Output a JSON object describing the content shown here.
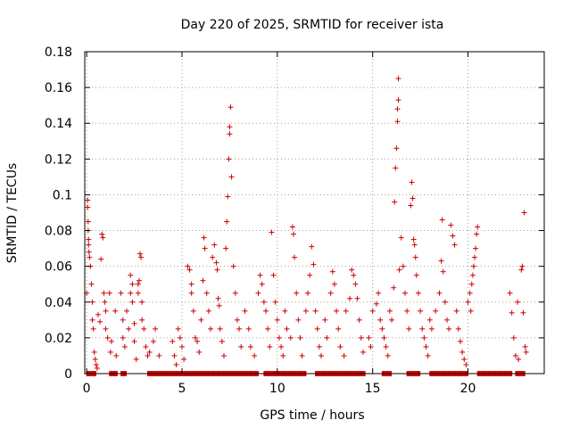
{
  "chart_data": {
    "type": "scatter",
    "title": "Day 220 of 2025, SRMTID for receiver ista",
    "xlabel": "GPS time / hours",
    "ylabel": "SRMTID / TECUs",
    "xlim": [
      -0.1,
      24.0
    ],
    "ylim": [
      0,
      0.18
    ],
    "x_ticks": [
      0,
      5,
      10,
      15,
      20
    ],
    "x_tick_labels": [
      "0",
      "5",
      "10",
      "15",
      "20"
    ],
    "y_ticks": [
      0,
      0.02,
      0.04,
      0.06,
      0.08,
      0.1,
      0.12,
      0.14,
      0.16,
      0.18
    ],
    "y_tick_labels": [
      "0",
      "0.02",
      "0.04",
      "0.06",
      "0.08",
      "0.1",
      "0.12",
      "0.14",
      "0.16",
      "0.18"
    ],
    "grid": true,
    "marker": "+",
    "series": [
      {
        "name": "SRMTID",
        "color": "#cc0000",
        "points": [
          [
            0.0,
            0.045
          ],
          [
            0.05,
            0.097
          ],
          [
            0.05,
            0.093
          ],
          [
            0.08,
            0.085
          ],
          [
            0.08,
            0.08
          ],
          [
            0.1,
            0.075
          ],
          [
            0.1,
            0.072
          ],
          [
            0.12,
            0.068
          ],
          [
            0.15,
            0.065
          ],
          [
            0.2,
            0.06
          ],
          [
            0.25,
            0.05
          ],
          [
            0.3,
            0.04
          ],
          [
            0.3,
            0.03
          ],
          [
            0.35,
            0.025
          ],
          [
            0.4,
            0.012
          ],
          [
            0.45,
            0.008
          ],
          [
            0.5,
            0.005
          ],
          [
            0.55,
            0.003
          ],
          [
            0.6,
            0.033
          ],
          [
            0.7,
            0.029
          ],
          [
            0.75,
            0.064
          ],
          [
            0.8,
            0.078
          ],
          [
            0.85,
            0.076
          ],
          [
            0.9,
            0.045
          ],
          [
            0.95,
            0.04
          ],
          [
            1.0,
            0.035
          ],
          [
            1.0,
            0.025
          ],
          [
            1.1,
            0.02
          ],
          [
            1.2,
            0.045
          ],
          [
            1.25,
            0.012
          ],
          [
            1.3,
            0.018
          ],
          [
            1.5,
            0.035
          ],
          [
            1.55,
            0.01
          ],
          [
            1.8,
            0.045
          ],
          [
            1.9,
            0.03
          ],
          [
            1.9,
            0.02
          ],
          [
            2.0,
            0.015
          ],
          [
            2.1,
            0.035
          ],
          [
            2.2,
            0.025
          ],
          [
            2.3,
            0.055
          ],
          [
            2.3,
            0.045
          ],
          [
            2.4,
            0.05
          ],
          [
            2.4,
            0.04
          ],
          [
            2.5,
            0.028
          ],
          [
            2.5,
            0.018
          ],
          [
            2.6,
            0.008
          ],
          [
            2.7,
            0.05
          ],
          [
            2.7,
            0.045
          ],
          [
            2.75,
            0.052
          ],
          [
            2.8,
            0.067
          ],
          [
            2.85,
            0.065
          ],
          [
            2.9,
            0.04
          ],
          [
            2.9,
            0.03
          ],
          [
            3.0,
            0.025
          ],
          [
            3.1,
            0.015
          ],
          [
            3.2,
            0.01
          ],
          [
            3.3,
            0.012
          ],
          [
            3.5,
            0.018
          ],
          [
            3.6,
            0.025
          ],
          [
            3.8,
            0.01
          ],
          [
            4.5,
            0.018
          ],
          [
            4.6,
            0.01
          ],
          [
            4.7,
            0.005
          ],
          [
            4.8,
            0.025
          ],
          [
            4.9,
            0.02
          ],
          [
            5.0,
            0.015
          ],
          [
            5.1,
            0.008
          ],
          [
            5.3,
            0.06
          ],
          [
            5.4,
            0.058
          ],
          [
            5.5,
            0.05
          ],
          [
            5.5,
            0.045
          ],
          [
            5.6,
            0.035
          ],
          [
            5.7,
            0.02
          ],
          [
            5.8,
            0.018
          ],
          [
            5.9,
            0.012
          ],
          [
            6.0,
            0.03
          ],
          [
            6.1,
            0.052
          ],
          [
            6.15,
            0.076
          ],
          [
            6.2,
            0.07
          ],
          [
            6.3,
            0.045
          ],
          [
            6.4,
            0.035
          ],
          [
            6.5,
            0.025
          ],
          [
            6.6,
            0.065
          ],
          [
            6.7,
            0.072
          ],
          [
            6.8,
            0.062
          ],
          [
            6.85,
            0.058
          ],
          [
            6.9,
            0.042
          ],
          [
            6.95,
            0.038
          ],
          [
            7.0,
            0.025
          ],
          [
            7.1,
            0.018
          ],
          [
            7.2,
            0.01
          ],
          [
            7.3,
            0.07
          ],
          [
            7.35,
            0.085
          ],
          [
            7.4,
            0.099
          ],
          [
            7.45,
            0.12
          ],
          [
            7.5,
            0.134
          ],
          [
            7.5,
            0.138
          ],
          [
            7.55,
            0.149
          ],
          [
            7.6,
            0.11
          ],
          [
            7.7,
            0.06
          ],
          [
            7.8,
            0.045
          ],
          [
            7.9,
            0.03
          ],
          [
            8.0,
            0.025
          ],
          [
            8.1,
            0.015
          ],
          [
            8.3,
            0.035
          ],
          [
            8.5,
            0.025
          ],
          [
            8.6,
            0.015
          ],
          [
            8.8,
            0.01
          ],
          [
            9.0,
            0.045
          ],
          [
            9.1,
            0.055
          ],
          [
            9.2,
            0.05
          ],
          [
            9.3,
            0.04
          ],
          [
            9.4,
            0.035
          ],
          [
            9.5,
            0.025
          ],
          [
            9.6,
            0.015
          ],
          [
            9.7,
            0.079
          ],
          [
            9.8,
            0.055
          ],
          [
            9.9,
            0.04
          ],
          [
            10.0,
            0.03
          ],
          [
            10.1,
            0.02
          ],
          [
            10.2,
            0.015
          ],
          [
            10.3,
            0.01
          ],
          [
            10.4,
            0.035
          ],
          [
            10.5,
            0.025
          ],
          [
            10.7,
            0.02
          ],
          [
            10.8,
            0.082
          ],
          [
            10.85,
            0.078
          ],
          [
            10.9,
            0.065
          ],
          [
            11.0,
            0.045
          ],
          [
            11.1,
            0.03
          ],
          [
            11.2,
            0.02
          ],
          [
            11.3,
            0.01
          ],
          [
            11.5,
            0.035
          ],
          [
            11.6,
            0.045
          ],
          [
            11.7,
            0.055
          ],
          [
            11.8,
            0.071
          ],
          [
            11.9,
            0.061
          ],
          [
            12.0,
            0.035
          ],
          [
            12.1,
            0.025
          ],
          [
            12.2,
            0.015
          ],
          [
            12.3,
            0.01
          ],
          [
            12.5,
            0.03
          ],
          [
            12.6,
            0.02
          ],
          [
            12.8,
            0.045
          ],
          [
            12.9,
            0.057
          ],
          [
            13.0,
            0.05
          ],
          [
            13.1,
            0.035
          ],
          [
            13.2,
            0.025
          ],
          [
            13.3,
            0.015
          ],
          [
            13.5,
            0.01
          ],
          [
            13.6,
            0.035
          ],
          [
            13.8,
            0.042
          ],
          [
            13.9,
            0.058
          ],
          [
            14.0,
            0.055
          ],
          [
            14.1,
            0.05
          ],
          [
            14.2,
            0.042
          ],
          [
            14.3,
            0.03
          ],
          [
            14.4,
            0.02
          ],
          [
            14.5,
            0.012
          ],
          [
            14.8,
            0.02
          ],
          [
            14.9,
            0.015
          ],
          [
            15.0,
            0.035
          ],
          [
            15.2,
            0.039
          ],
          [
            15.3,
            0.045
          ],
          [
            15.4,
            0.03
          ],
          [
            15.5,
            0.025
          ],
          [
            15.6,
            0.02
          ],
          [
            15.7,
            0.015
          ],
          [
            15.8,
            0.01
          ],
          [
            15.9,
            0.035
          ],
          [
            16.0,
            0.03
          ],
          [
            16.1,
            0.048
          ],
          [
            16.15,
            0.096
          ],
          [
            16.2,
            0.115
          ],
          [
            16.25,
            0.126
          ],
          [
            16.3,
            0.141
          ],
          [
            16.3,
            0.148
          ],
          [
            16.35,
            0.153
          ],
          [
            16.35,
            0.165
          ],
          [
            16.4,
            0.058
          ],
          [
            16.5,
            0.076
          ],
          [
            16.6,
            0.06
          ],
          [
            16.7,
            0.045
          ],
          [
            16.8,
            0.035
          ],
          [
            16.9,
            0.025
          ],
          [
            17.0,
            0.094
          ],
          [
            17.05,
            0.107
          ],
          [
            17.1,
            0.098
          ],
          [
            17.15,
            0.075
          ],
          [
            17.2,
            0.072
          ],
          [
            17.25,
            0.065
          ],
          [
            17.3,
            0.055
          ],
          [
            17.4,
            0.045
          ],
          [
            17.5,
            0.035
          ],
          [
            17.6,
            0.025
          ],
          [
            17.7,
            0.02
          ],
          [
            17.8,
            0.015
          ],
          [
            17.9,
            0.01
          ],
          [
            18.0,
            0.03
          ],
          [
            18.1,
            0.025
          ],
          [
            18.3,
            0.035
          ],
          [
            18.5,
            0.045
          ],
          [
            18.6,
            0.063
          ],
          [
            18.65,
            0.086
          ],
          [
            18.7,
            0.057
          ],
          [
            18.8,
            0.04
          ],
          [
            18.9,
            0.03
          ],
          [
            19.0,
            0.025
          ],
          [
            19.1,
            0.083
          ],
          [
            19.2,
            0.077
          ],
          [
            19.3,
            0.072
          ],
          [
            19.4,
            0.035
          ],
          [
            19.5,
            0.025
          ],
          [
            19.6,
            0.018
          ],
          [
            19.7,
            0.012
          ],
          [
            19.8,
            0.008
          ],
          [
            19.9,
            0.005
          ],
          [
            20.0,
            0.04
          ],
          [
            20.1,
            0.045
          ],
          [
            20.15,
            0.035
          ],
          [
            20.2,
            0.05
          ],
          [
            20.25,
            0.055
          ],
          [
            20.3,
            0.06
          ],
          [
            20.35,
            0.065
          ],
          [
            20.4,
            0.07
          ],
          [
            20.45,
            0.078
          ],
          [
            20.5,
            0.082
          ],
          [
            22.2,
            0.045
          ],
          [
            22.3,
            0.034
          ],
          [
            22.4,
            0.02
          ],
          [
            22.5,
            0.01
          ],
          [
            22.6,
            0.04
          ],
          [
            22.65,
            0.008
          ],
          [
            22.8,
            0.058
          ],
          [
            22.85,
            0.06
          ],
          [
            22.9,
            0.034
          ],
          [
            22.95,
            0.09
          ],
          [
            23.0,
            0.015
          ],
          [
            23.05,
            0.012
          ]
        ]
      }
    ],
    "zero_bands": [
      [
        0.0,
        0.5
      ],
      [
        1.2,
        1.6
      ],
      [
        1.8,
        2.1
      ],
      [
        3.2,
        9.0
      ],
      [
        9.3,
        11.5
      ],
      [
        12.0,
        14.6
      ],
      [
        15.5,
        16.0
      ],
      [
        16.8,
        17.5
      ],
      [
        18.0,
        20.0
      ],
      [
        20.5,
        22.3
      ],
      [
        22.5,
        23.0
      ]
    ]
  }
}
